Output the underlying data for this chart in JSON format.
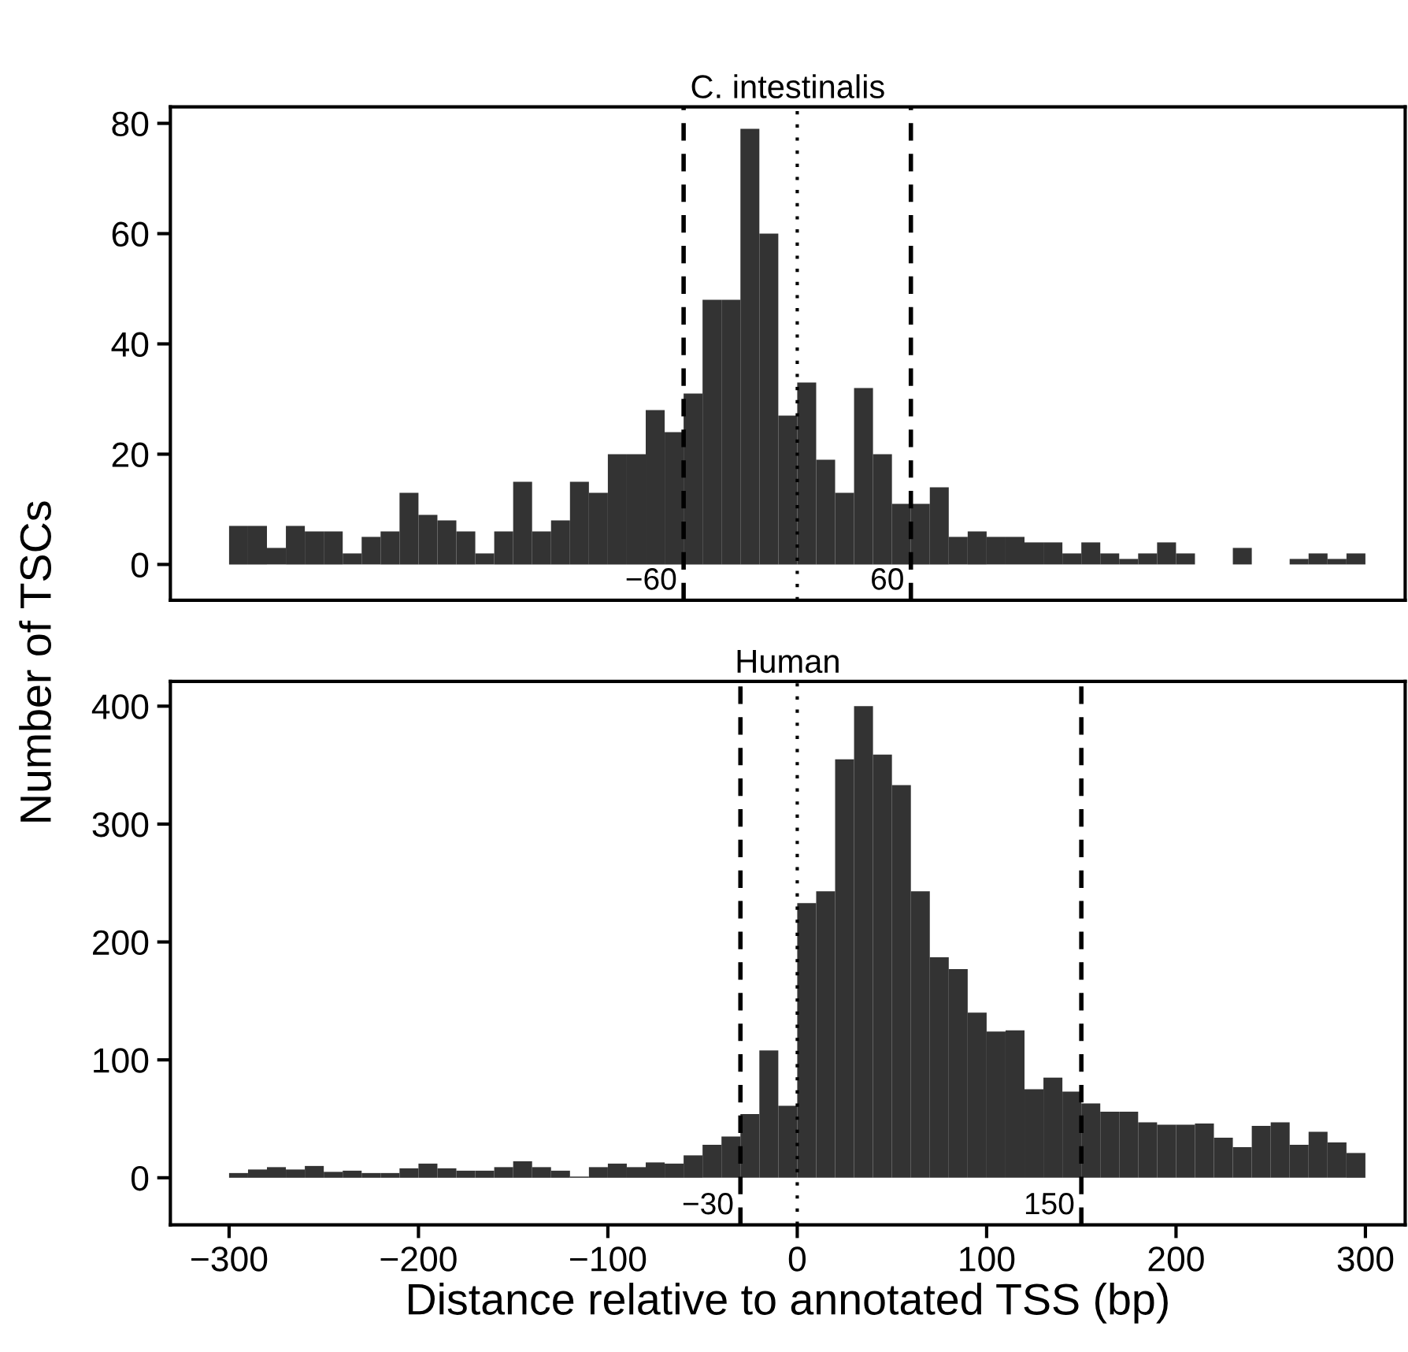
{
  "chart_data": [
    {
      "type": "histogram",
      "title": "C. intestinalis",
      "ylabel": "Number of TSCs",
      "color": "#333333",
      "bins": [
        -300,
        -290,
        -280,
        -270,
        -260,
        -250,
        -240,
        -230,
        -220,
        -210,
        -200,
        -190,
        -180,
        -170,
        -160,
        -150,
        -140,
        -130,
        -120,
        -110,
        -100,
        -90,
        -80,
        -70,
        -60,
        -50,
        -40,
        -30,
        -20,
        -10,
        0,
        10,
        20,
        30,
        40,
        50,
        60,
        70,
        80,
        90,
        100,
        110,
        120,
        130,
        140,
        150,
        160,
        170,
        180,
        190,
        200,
        210,
        220,
        230,
        240,
        250,
        260,
        270,
        280,
        290,
        300
      ],
      "values": [
        7,
        7,
        3,
        7,
        6,
        6,
        2,
        5,
        6,
        13,
        9,
        8,
        6,
        2,
        6,
        15,
        6,
        8,
        15,
        13,
        20,
        20,
        28,
        24,
        31,
        48,
        48,
        79,
        60,
        27,
        33,
        19,
        13,
        32,
        20,
        11,
        11,
        14,
        5,
        6,
        5,
        5,
        4,
        4,
        2,
        4,
        2,
        1,
        2,
        4,
        2,
        0,
        0,
        3,
        0,
        0,
        1,
        2,
        1,
        2
      ],
      "xlim": [
        -331,
        321
      ],
      "ylim": [
        -6.5,
        83
      ],
      "yticks": [
        0,
        20,
        40,
        60,
        80
      ],
      "tick_labels": "y",
      "grid": false,
      "ref_lines": [
        {
          "axis": "x",
          "value": -60,
          "label": "−60",
          "line_style": "dashed"
        },
        {
          "axis": "x",
          "value": 0,
          "line_style": "dotted"
        },
        {
          "axis": "x",
          "value": 60,
          "label": "60",
          "line_style": "dashed"
        }
      ]
    },
    {
      "type": "histogram",
      "title": "Human",
      "xlabel": "Distance relative to annotated TSS (bp)",
      "color": "#333333",
      "bins": [
        -300,
        -290,
        -280,
        -270,
        -260,
        -250,
        -240,
        -230,
        -220,
        -210,
        -200,
        -190,
        -180,
        -170,
        -160,
        -150,
        -140,
        -130,
        -120,
        -110,
        -100,
        -90,
        -80,
        -70,
        -60,
        -50,
        -40,
        -30,
        -20,
        -10,
        0,
        10,
        20,
        30,
        40,
        50,
        60,
        70,
        80,
        90,
        100,
        110,
        120,
        130,
        140,
        150,
        160,
        170,
        180,
        190,
        200,
        210,
        220,
        230,
        240,
        250,
        260,
        270,
        280,
        290,
        300
      ],
      "values": [
        4,
        7,
        9,
        7,
        10,
        5,
        6,
        4,
        4,
        8,
        12,
        8,
        6,
        6,
        9,
        14,
        9,
        6,
        1,
        9,
        12,
        9,
        13,
        12,
        19,
        28,
        35,
        54,
        108,
        61,
        233,
        243,
        355,
        400,
        359,
        333,
        243,
        187,
        177,
        140,
        124,
        125,
        75,
        85,
        73,
        63,
        56,
        56,
        47,
        45,
        45,
        46,
        34,
        26,
        44,
        47,
        28,
        39,
        30,
        21
      ],
      "xlim": [
        -331,
        321
      ],
      "xticks": [
        {
          "value": -300,
          "label": "−300"
        },
        {
          "value": -200,
          "label": "−200"
        },
        {
          "value": -100,
          "label": "−100"
        },
        0,
        100,
        200,
        300
      ],
      "ylim": [
        -40,
        421
      ],
      "yticks": [
        0,
        100,
        200,
        300,
        400
      ],
      "grid": false,
      "ref_lines": [
        {
          "axis": "x",
          "value": -30,
          "label": "−30",
          "line_style": "dashed"
        },
        {
          "axis": "x",
          "value": 0,
          "line_style": "dotted"
        },
        {
          "axis": "x",
          "value": 150,
          "label": "150",
          "line_style": "dashed"
        }
      ]
    }
  ]
}
